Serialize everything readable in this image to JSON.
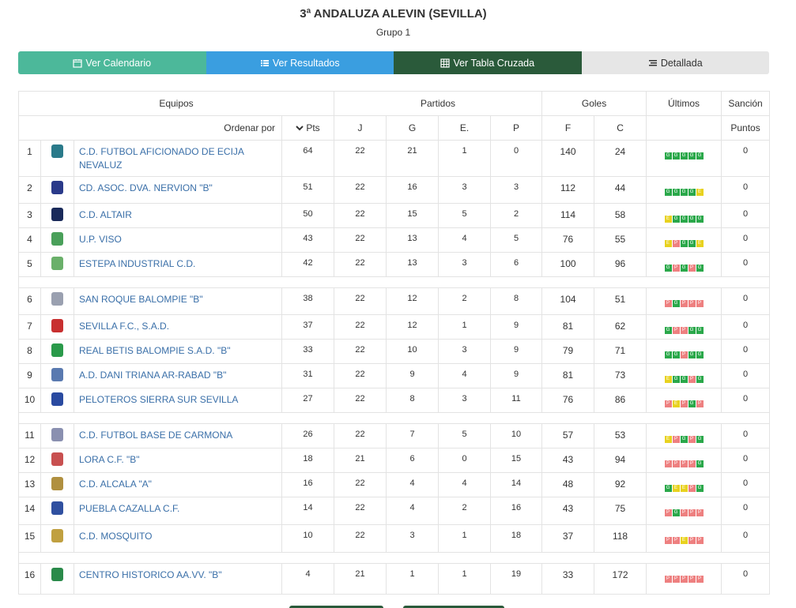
{
  "header": {
    "title": "3ª ANDALUZA ALEVIN (SEVILLA)",
    "subtitle": "Grupo 1"
  },
  "tabs": [
    {
      "label": "Ver Calendario",
      "icon": "calendar-icon"
    },
    {
      "label": "Ver Resultados",
      "icon": "list-icon"
    },
    {
      "label": "Ver Tabla Cruzada",
      "icon": "table-icon"
    },
    {
      "label": "Detallada",
      "icon": "detail-list-icon"
    }
  ],
  "table": {
    "groups": {
      "equipos": "Equipos",
      "partidos": "Partidos",
      "goles": "Goles",
      "ultimos": "Últimos",
      "sancion": "Sanción"
    },
    "sub": {
      "ordenar": "Ordenar por",
      "pts": "Pts",
      "j": "J",
      "g": "G",
      "e": "E.",
      "p": "P",
      "f": "F",
      "c": "C",
      "puntos": "Puntos"
    },
    "rows": [
      {
        "pos": "1",
        "team": "C.D. FUTBOL AFICIONADO DE ECIJA NEVALUZ",
        "pts": "64",
        "j": "22",
        "g": "21",
        "e": "1",
        "p": "0",
        "f": "140",
        "c": "24",
        "last": [
          "G",
          "G",
          "G",
          "G",
          "G"
        ],
        "s": "0",
        "crest": "#2a7a8a"
      },
      {
        "pos": "2",
        "team": "CD. ASOC. DVA. NERVION \"B\"",
        "pts": "51",
        "j": "22",
        "g": "16",
        "e": "3",
        "p": "3",
        "f": "112",
        "c": "44",
        "last": [
          "G",
          "G",
          "G",
          "G",
          "E"
        ],
        "s": "0",
        "crest": "#2a3a8a"
      },
      {
        "pos": "3",
        "team": "C.D. ALTAIR",
        "pts": "50",
        "j": "22",
        "g": "15",
        "e": "5",
        "p": "2",
        "f": "114",
        "c": "58",
        "last": [
          "E",
          "G",
          "G",
          "G",
          "G"
        ],
        "s": "0",
        "crest": "#1a2a5a"
      },
      {
        "pos": "4",
        "team": "U.P. VISO",
        "pts": "43",
        "j": "22",
        "g": "13",
        "e": "4",
        "p": "5",
        "f": "76",
        "c": "55",
        "last": [
          "E",
          "P",
          "G",
          "G",
          "E"
        ],
        "s": "0",
        "crest": "#4aa05a"
      },
      {
        "pos": "5",
        "team": "ESTEPA INDUSTRIAL C.D.",
        "pts": "42",
        "j": "22",
        "g": "13",
        "e": "3",
        "p": "6",
        "f": "100",
        "c": "96",
        "last": [
          "G",
          "P",
          "G",
          "P",
          "G"
        ],
        "s": "0",
        "crest": "#6ab06a"
      },
      {
        "pos": "6",
        "team": "SAN ROQUE BALOMPIE \"B\"",
        "pts": "38",
        "j": "22",
        "g": "12",
        "e": "2",
        "p": "8",
        "f": "104",
        "c": "51",
        "last": [
          "P",
          "G",
          "P",
          "P",
          "P"
        ],
        "s": "0",
        "crest": "#9aa0b0"
      },
      {
        "pos": "7",
        "team": "SEVILLA F.C., S.A.D.",
        "pts": "37",
        "j": "22",
        "g": "12",
        "e": "1",
        "p": "9",
        "f": "81",
        "c": "62",
        "last": [
          "G",
          "P",
          "P",
          "G",
          "G"
        ],
        "s": "0",
        "crest": "#c83030"
      },
      {
        "pos": "8",
        "team": "REAL BETIS BALOMPIE S.A.D. \"B\"",
        "pts": "33",
        "j": "22",
        "g": "10",
        "e": "3",
        "p": "9",
        "f": "79",
        "c": "71",
        "last": [
          "G",
          "G",
          "P",
          "G",
          "G"
        ],
        "s": "0",
        "crest": "#2a9a4a"
      },
      {
        "pos": "9",
        "team": "A.D. DANI TRIANA AR-RABAD \"B\"",
        "pts": "31",
        "j": "22",
        "g": "9",
        "e": "4",
        "p": "9",
        "f": "81",
        "c": "73",
        "last": [
          "E",
          "G",
          "G",
          "P",
          "G"
        ],
        "s": "0",
        "crest": "#5a7ab0"
      },
      {
        "pos": "10",
        "team": "PELOTEROS SIERRA SUR SEVILLA",
        "pts": "27",
        "j": "22",
        "g": "8",
        "e": "3",
        "p": "11",
        "f": "76",
        "c": "86",
        "last": [
          "P",
          "E",
          "P",
          "G",
          "P"
        ],
        "s": "0",
        "crest": "#2a4aa0"
      },
      {
        "pos": "11",
        "team": "C.D. FUTBOL BASE DE CARMONA",
        "pts": "26",
        "j": "22",
        "g": "7",
        "e": "5",
        "p": "10",
        "f": "57",
        "c": "53",
        "last": [
          "E",
          "P",
          "G",
          "P",
          "G"
        ],
        "s": "0",
        "crest": "#8a90b0"
      },
      {
        "pos": "12",
        "team": "LORA C.F. \"B\"",
        "pts": "18",
        "j": "21",
        "g": "6",
        "e": "0",
        "p": "15",
        "f": "43",
        "c": "94",
        "last": [
          "P",
          "P",
          "P",
          "P",
          "G"
        ],
        "s": "0",
        "crest": "#c85050"
      },
      {
        "pos": "13",
        "team": "C.D. ALCALA \"A\"",
        "pts": "16",
        "j": "22",
        "g": "4",
        "e": "4",
        "p": "14",
        "f": "48",
        "c": "92",
        "last": [
          "G",
          "E",
          "E",
          "P",
          "G"
        ],
        "s": "0",
        "crest": "#b09040"
      },
      {
        "pos": "14",
        "team": "PUEBLA CAZALLA C.F.",
        "pts": "14",
        "j": "22",
        "g": "4",
        "e": "2",
        "p": "16",
        "f": "43",
        "c": "75",
        "last": [
          "P",
          "G",
          "P",
          "P",
          "P"
        ],
        "s": "0",
        "crest": "#3050a0"
      },
      {
        "pos": "15",
        "team": "C.D. MOSQUITO",
        "pts": "10",
        "j": "22",
        "g": "3",
        "e": "1",
        "p": "18",
        "f": "37",
        "c": "118",
        "last": [
          "P",
          "P",
          "E",
          "P",
          "P"
        ],
        "s": "0",
        "crest": "#c0a040"
      },
      {
        "pos": "16",
        "team": "CENTRO HISTORICO AA.VV. \"B\"",
        "pts": "4",
        "j": "21",
        "g": "1",
        "e": "1",
        "p": "19",
        "f": "33",
        "c": "172",
        "last": [
          "P",
          "P",
          "P",
          "P",
          "P"
        ],
        "s": "0",
        "crest": "#2a8a4a"
      }
    ]
  },
  "colors": {
    "win": "#2aa84a",
    "draw": "#e8d21f",
    "loss": "#ee8080",
    "tab1": "#4cb89a",
    "tab2": "#3a9ee0",
    "tab3": "#2a5a3a",
    "tab4": "#e6e6e6"
  }
}
